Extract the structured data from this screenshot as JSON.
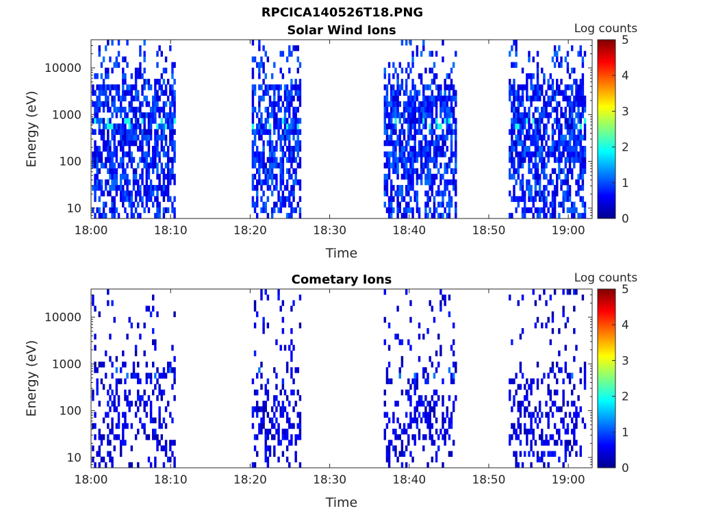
{
  "figure_title": "RPCICA140526T18.PNG",
  "colors": {
    "colormap": [
      "#00008f",
      "#0000ff",
      "#0080ff",
      "#00ffff",
      "#80ff80",
      "#ffff00",
      "#ff8000",
      "#ff0000",
      "#800000"
    ],
    "axis": "#262626"
  },
  "chart_data": [
    {
      "type": "heatmap",
      "title": "Solar Wind Ions",
      "xlabel": "Time",
      "ylabel": "Energy (eV)",
      "xticks": [
        "18:00",
        "18:10",
        "18:20",
        "18:30",
        "18:40",
        "18:50",
        "19:00"
      ],
      "xlim_minutes": [
        0,
        63
      ],
      "yscale": "log",
      "ylim": [
        6,
        40000
      ],
      "yticks": [
        "10",
        "100",
        "1000",
        "10000"
      ],
      "colorbar": {
        "label": "Log counts",
        "ticks": [
          "0",
          "1",
          "2",
          "3",
          "4",
          "5"
        ],
        "range": [
          0,
          5
        ]
      },
      "data_intervals_minutes": [
        [
          0.1,
          10.5
        ],
        [
          20.2,
          26.2
        ],
        [
          36.8,
          45.8
        ],
        [
          52.5,
          62.0
        ]
      ],
      "peak": {
        "energy_eV": 600,
        "log_counts": 2
      },
      "typical_log_counts": [
        0.3,
        1.2
      ]
    },
    {
      "type": "heatmap",
      "title": "Cometary Ions",
      "xlabel": "Time",
      "ylabel": "Energy (eV)",
      "xticks": [
        "18:00",
        "18:10",
        "18:20",
        "18:30",
        "18:40",
        "18:50",
        "19:00"
      ],
      "xlim_minutes": [
        0,
        63
      ],
      "yscale": "log",
      "ylim": [
        6,
        40000
      ],
      "yticks": [
        "10",
        "100",
        "1000",
        "10000"
      ],
      "colorbar": {
        "label": "Log counts",
        "ticks": [
          "0",
          "1",
          "2",
          "3",
          "4",
          "5"
        ],
        "range": [
          0,
          5
        ]
      },
      "data_intervals_minutes": [
        [
          0.1,
          10.5
        ],
        [
          20.2,
          26.2
        ],
        [
          36.8,
          45.8
        ],
        [
          52.5,
          62.0
        ]
      ],
      "peak": {
        "energy_eV": 600,
        "log_counts": 1.2
      },
      "typical_log_counts": [
        0.1,
        0.8
      ]
    }
  ]
}
